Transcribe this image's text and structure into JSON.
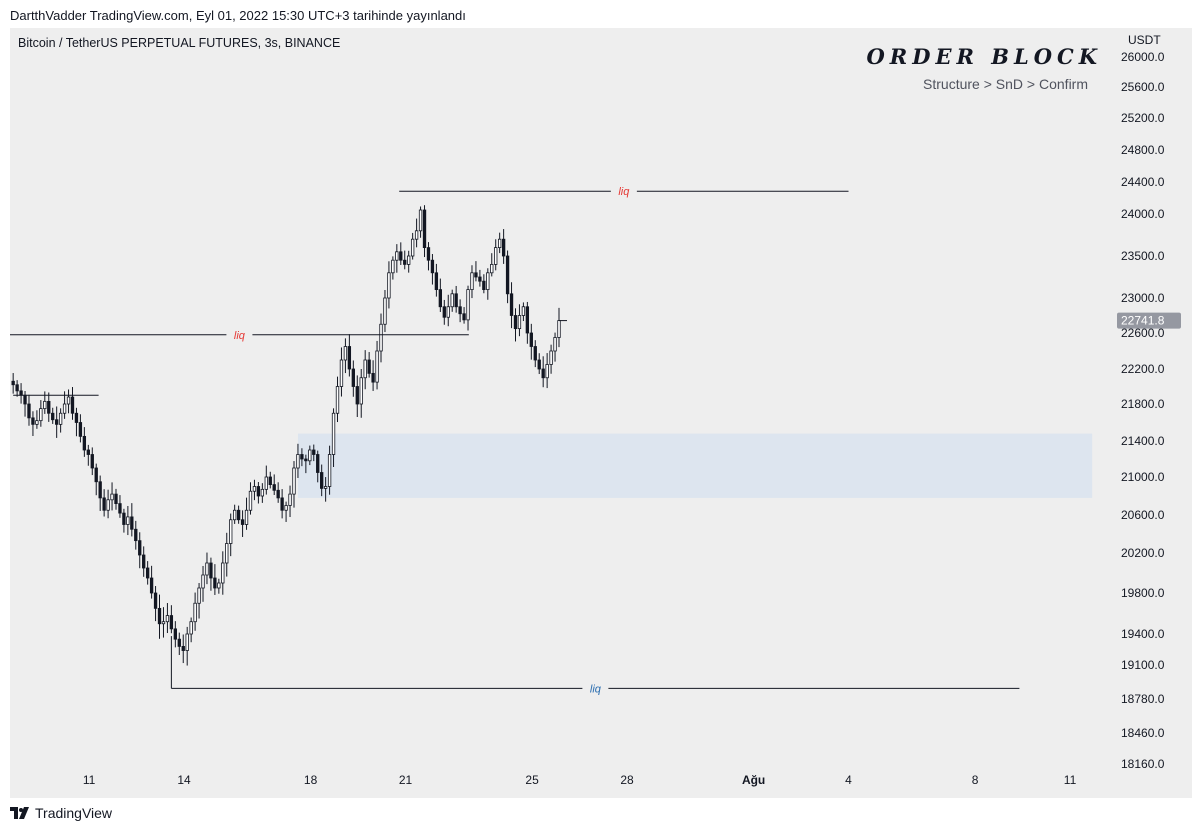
{
  "header": {
    "text": "DartthVadder TradingView.com, Eyl 01, 2022 15:30 UTC+3 tarihinde yayınlandı"
  },
  "overlay": {
    "title": "ORDER BLOCK",
    "subtitle": "Structure > SnD > Confirm"
  },
  "footer": {
    "brand": "TradingView",
    "logo_icon": "tradingview-logo-icon"
  },
  "colors": {
    "background": "#eeeeee",
    "candle": "#131722",
    "liq_red": "#e53935",
    "liq_blue": "#2a6db0",
    "order_block": "#dde5ef",
    "price_label_bg": "#9598a1"
  },
  "chart_data": {
    "type": "candlestick",
    "title": "Bitcoin / TetherUS PERPETUAL FUTURES, 3s, BINANCE",
    "currency": "USDT",
    "price_axis_ticks": [
      26000,
      25600,
      25200,
      24800,
      24400,
      24000,
      23500,
      23000,
      22600,
      22200,
      21800,
      21400,
      21000,
      20600,
      20200,
      19800,
      19400,
      19100,
      18780,
      18460,
      18160
    ],
    "price_axis_labels": [
      "26000.0",
      "25600.0",
      "25200.0",
      "24800.0",
      "24400.0",
      "24000.0",
      "23500.0",
      "23000.0",
      "22600.0",
      "22200.0",
      "21800.0",
      "21400.0",
      "21000.0",
      "20600.0",
      "20200.0",
      "19800.0",
      "19400.0",
      "19100.0",
      "18780.0",
      "18460.0",
      "18160.0"
    ],
    "time_axis_labels": [
      {
        "label": "11",
        "day": 11
      },
      {
        "label": "14",
        "day": 14
      },
      {
        "label": "18",
        "day": 18
      },
      {
        "label": "21",
        "day": 21
      },
      {
        "label": "25",
        "day": 25
      },
      {
        "label": "28",
        "day": 28
      },
      {
        "label": "Ağu",
        "day": 32,
        "bold": true
      },
      {
        "label": "4",
        "day": 35
      },
      {
        "label": "8",
        "day": 39
      },
      {
        "label": "11",
        "day": 42
      }
    ],
    "last_price": 22741.8,
    "last_price_label": "22741.8",
    "x_range_days": [
      8.5,
      43.2
    ],
    "bars_per_day": 8,
    "start_day": 8.6,
    "closes": [
      22020,
      21950,
      21900,
      21800,
      21650,
      21580,
      21620,
      21750,
      21830,
      21700,
      21630,
      21580,
      21700,
      21800,
      21880,
      21700,
      21600,
      21450,
      21300,
      21250,
      21100,
      20950,
      20780,
      20650,
      20760,
      20820,
      20720,
      20620,
      20500,
      20580,
      20450,
      20330,
      20180,
      20050,
      19950,
      19800,
      19650,
      19500,
      19520,
      19580,
      19450,
      19350,
      19280,
      19240,
      19400,
      19520,
      19700,
      19850,
      19980,
      20100,
      19950,
      19850,
      19900,
      20100,
      20300,
      20550,
      20650,
      20550,
      20500,
      20650,
      20850,
      20900,
      20800,
      20870,
      21000,
      20920,
      20860,
      20780,
      20650,
      20700,
      20820,
      21100,
      21250,
      21200,
      21180,
      21300,
      21250,
      21050,
      20880,
      20900,
      21250,
      21700,
      22000,
      22300,
      22450,
      22200,
      22000,
      21800,
      22100,
      22300,
      22150,
      22050,
      22400,
      22700,
      23000,
      23300,
      23450,
      23550,
      23450,
      23400,
      23500,
      23700,
      23800,
      24050,
      23600,
      23450,
      23300,
      23100,
      22900,
      22780,
      22900,
      23050,
      22900,
      22820,
      22750,
      23100,
      23300,
      23250,
      23200,
      23100,
      23300,
      23400,
      23600,
      23700,
      23500,
      23050,
      22800,
      22650,
      22800,
      22900,
      22600,
      22450,
      22300,
      22200,
      22100,
      22250,
      22400,
      22550,
      22741.8
    ],
    "liquidity_lines": [
      {
        "label": "liq",
        "price": 24285,
        "day_from": 20.8,
        "day_to": 35.0,
        "color": "red"
      },
      {
        "label": "liq",
        "price": 22580,
        "day_from": 8.5,
        "day_to": 23.0,
        "color": "red"
      },
      {
        "label": "",
        "price": 21900,
        "day_from": 8.6,
        "day_to": 11.3
      },
      {
        "label": "liq",
        "price": 18880,
        "day_from": 13.6,
        "day_to": 40.4,
        "color": "blue",
        "vertical_from": 19380
      }
    ],
    "order_block": {
      "price_low": 20780,
      "price_high": 21480,
      "day_from": 17.6,
      "day_to": 42.7
    }
  }
}
